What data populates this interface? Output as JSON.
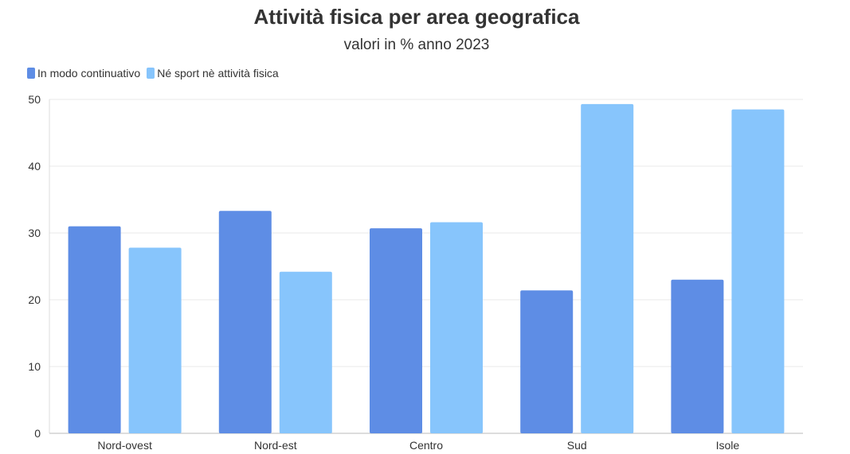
{
  "chart_data": {
    "type": "bar",
    "title": "Attività fisica per area geografica",
    "subtitle": "valori in % anno 2023",
    "categories": [
      "Nord-ovest",
      "Nord-est",
      "Centro",
      "Sud",
      "Isole"
    ],
    "series": [
      {
        "name": "In modo continuativo",
        "color": "#5e8de5",
        "values": [
          31.0,
          33.3,
          30.7,
          21.4,
          23.0
        ]
      },
      {
        "name": "Né sport nè attività fisica",
        "color": "#87c5fc",
        "values": [
          27.8,
          24.2,
          31.6,
          49.3,
          48.5
        ]
      }
    ],
    "yticks": [
      "0",
      "10",
      "20",
      "30",
      "40",
      "50"
    ],
    "ylim": [
      0,
      50
    ],
    "grid": true,
    "legend_position": "top-left"
  }
}
